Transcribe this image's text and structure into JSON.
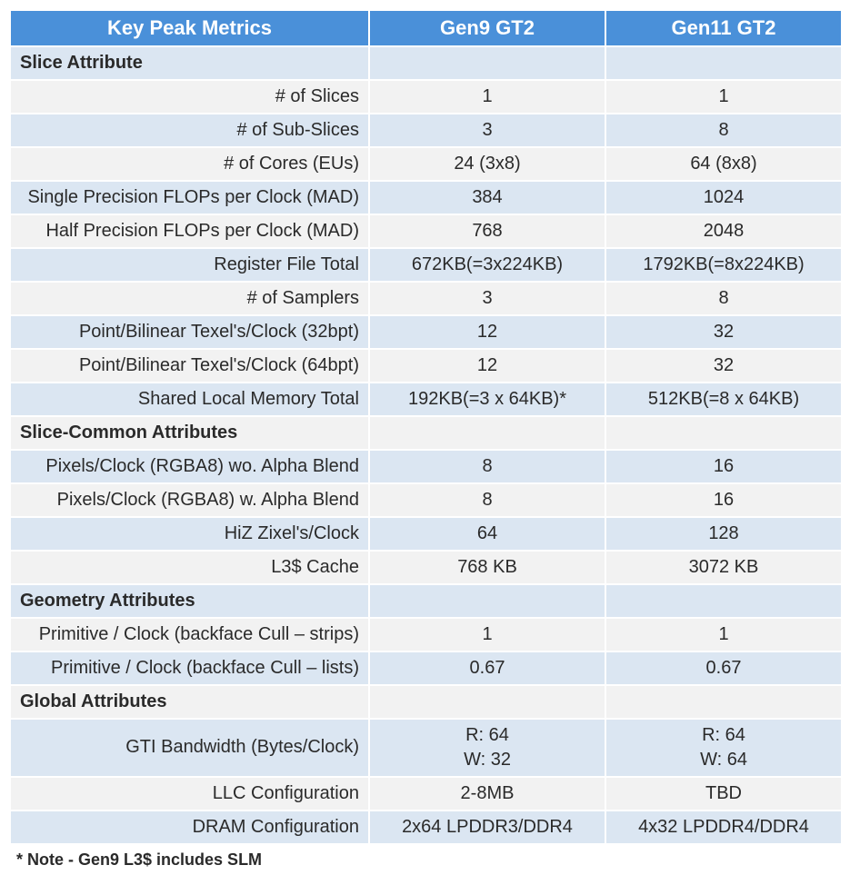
{
  "colors": {
    "header_bg": "#4a90d9",
    "header_fg": "#ffffff",
    "row_even_bg": "#dbe6f2",
    "row_odd_bg": "#f2f2f2",
    "text": "#2a2a2a",
    "border": "#ffffff"
  },
  "fonts": {
    "family": "Segoe UI",
    "body_size_pt": 15,
    "header_size_pt": 16
  },
  "header": {
    "col1": "Key Peak Metrics",
    "col2": "Gen9 GT2",
    "col3": "Gen11 GT2"
  },
  "sections": [
    {
      "title": "Slice Attribute",
      "rows": [
        {
          "label": "# of Slices",
          "g9": "1",
          "g11": "1"
        },
        {
          "label": "# of Sub-Slices",
          "g9": "3",
          "g11": "8"
        },
        {
          "label": "# of Cores (EUs)",
          "g9": "24 (3x8)",
          "g11": "64 (8x8)"
        },
        {
          "label": "Single Precision FLOPs per Clock (MAD)",
          "g9": "384",
          "g11": "1024"
        },
        {
          "label": "Half Precision FLOPs per Clock (MAD)",
          "g9": "768",
          "g11": "2048"
        },
        {
          "label": "Register File Total",
          "g9": "672KB(=3x224KB)",
          "g11": "1792KB(=8x224KB)"
        },
        {
          "label": "# of Samplers",
          "g9": "3",
          "g11": "8"
        },
        {
          "label": "Point/Bilinear Texel's/Clock (32bpt)",
          "g9": "12",
          "g11": "32"
        },
        {
          "label": "Point/Bilinear Texel's/Clock (64bpt)",
          "g9": "12",
          "g11": "32"
        },
        {
          "label": "Shared Local Memory Total",
          "g9": "192KB(=3 x 64KB)*",
          "g11": "512KB(=8 x 64KB)"
        }
      ]
    },
    {
      "title": "Slice-Common Attributes",
      "rows": [
        {
          "label": "Pixels/Clock (RGBA8) wo. Alpha Blend",
          "g9": "8",
          "g11": "16"
        },
        {
          "label": "Pixels/Clock (RGBA8) w. Alpha Blend",
          "g9": "8",
          "g11": "16"
        },
        {
          "label": "HiZ Zixel's/Clock",
          "g9": "64",
          "g11": "128"
        },
        {
          "label": "L3$ Cache",
          "g9": "768 KB",
          "g11": "3072 KB"
        }
      ]
    },
    {
      "title": "Geometry Attributes",
      "rows": [
        {
          "label": "Primitive / Clock (backface Cull – strips)",
          "g9": "1",
          "g11": "1"
        },
        {
          "label": "Primitive / Clock (backface Cull – lists)",
          "g9": "0.67",
          "g11": "0.67"
        }
      ]
    },
    {
      "title": "Global Attributes",
      "rows": [
        {
          "label": "GTI Bandwidth (Bytes/Clock)",
          "g9": "R: 64\nW: 32",
          "g11": "R: 64\nW: 64"
        },
        {
          "label": "LLC Configuration",
          "g9": "2-8MB",
          "g11": "TBD"
        },
        {
          "label": "DRAM Configuration",
          "g9": "2x64 LPDDR3/DDR4",
          "g11": "4x32 LPDDR4/DDR4"
        }
      ]
    }
  ],
  "footnote": "* Note - Gen9 L3$ includes SLM"
}
